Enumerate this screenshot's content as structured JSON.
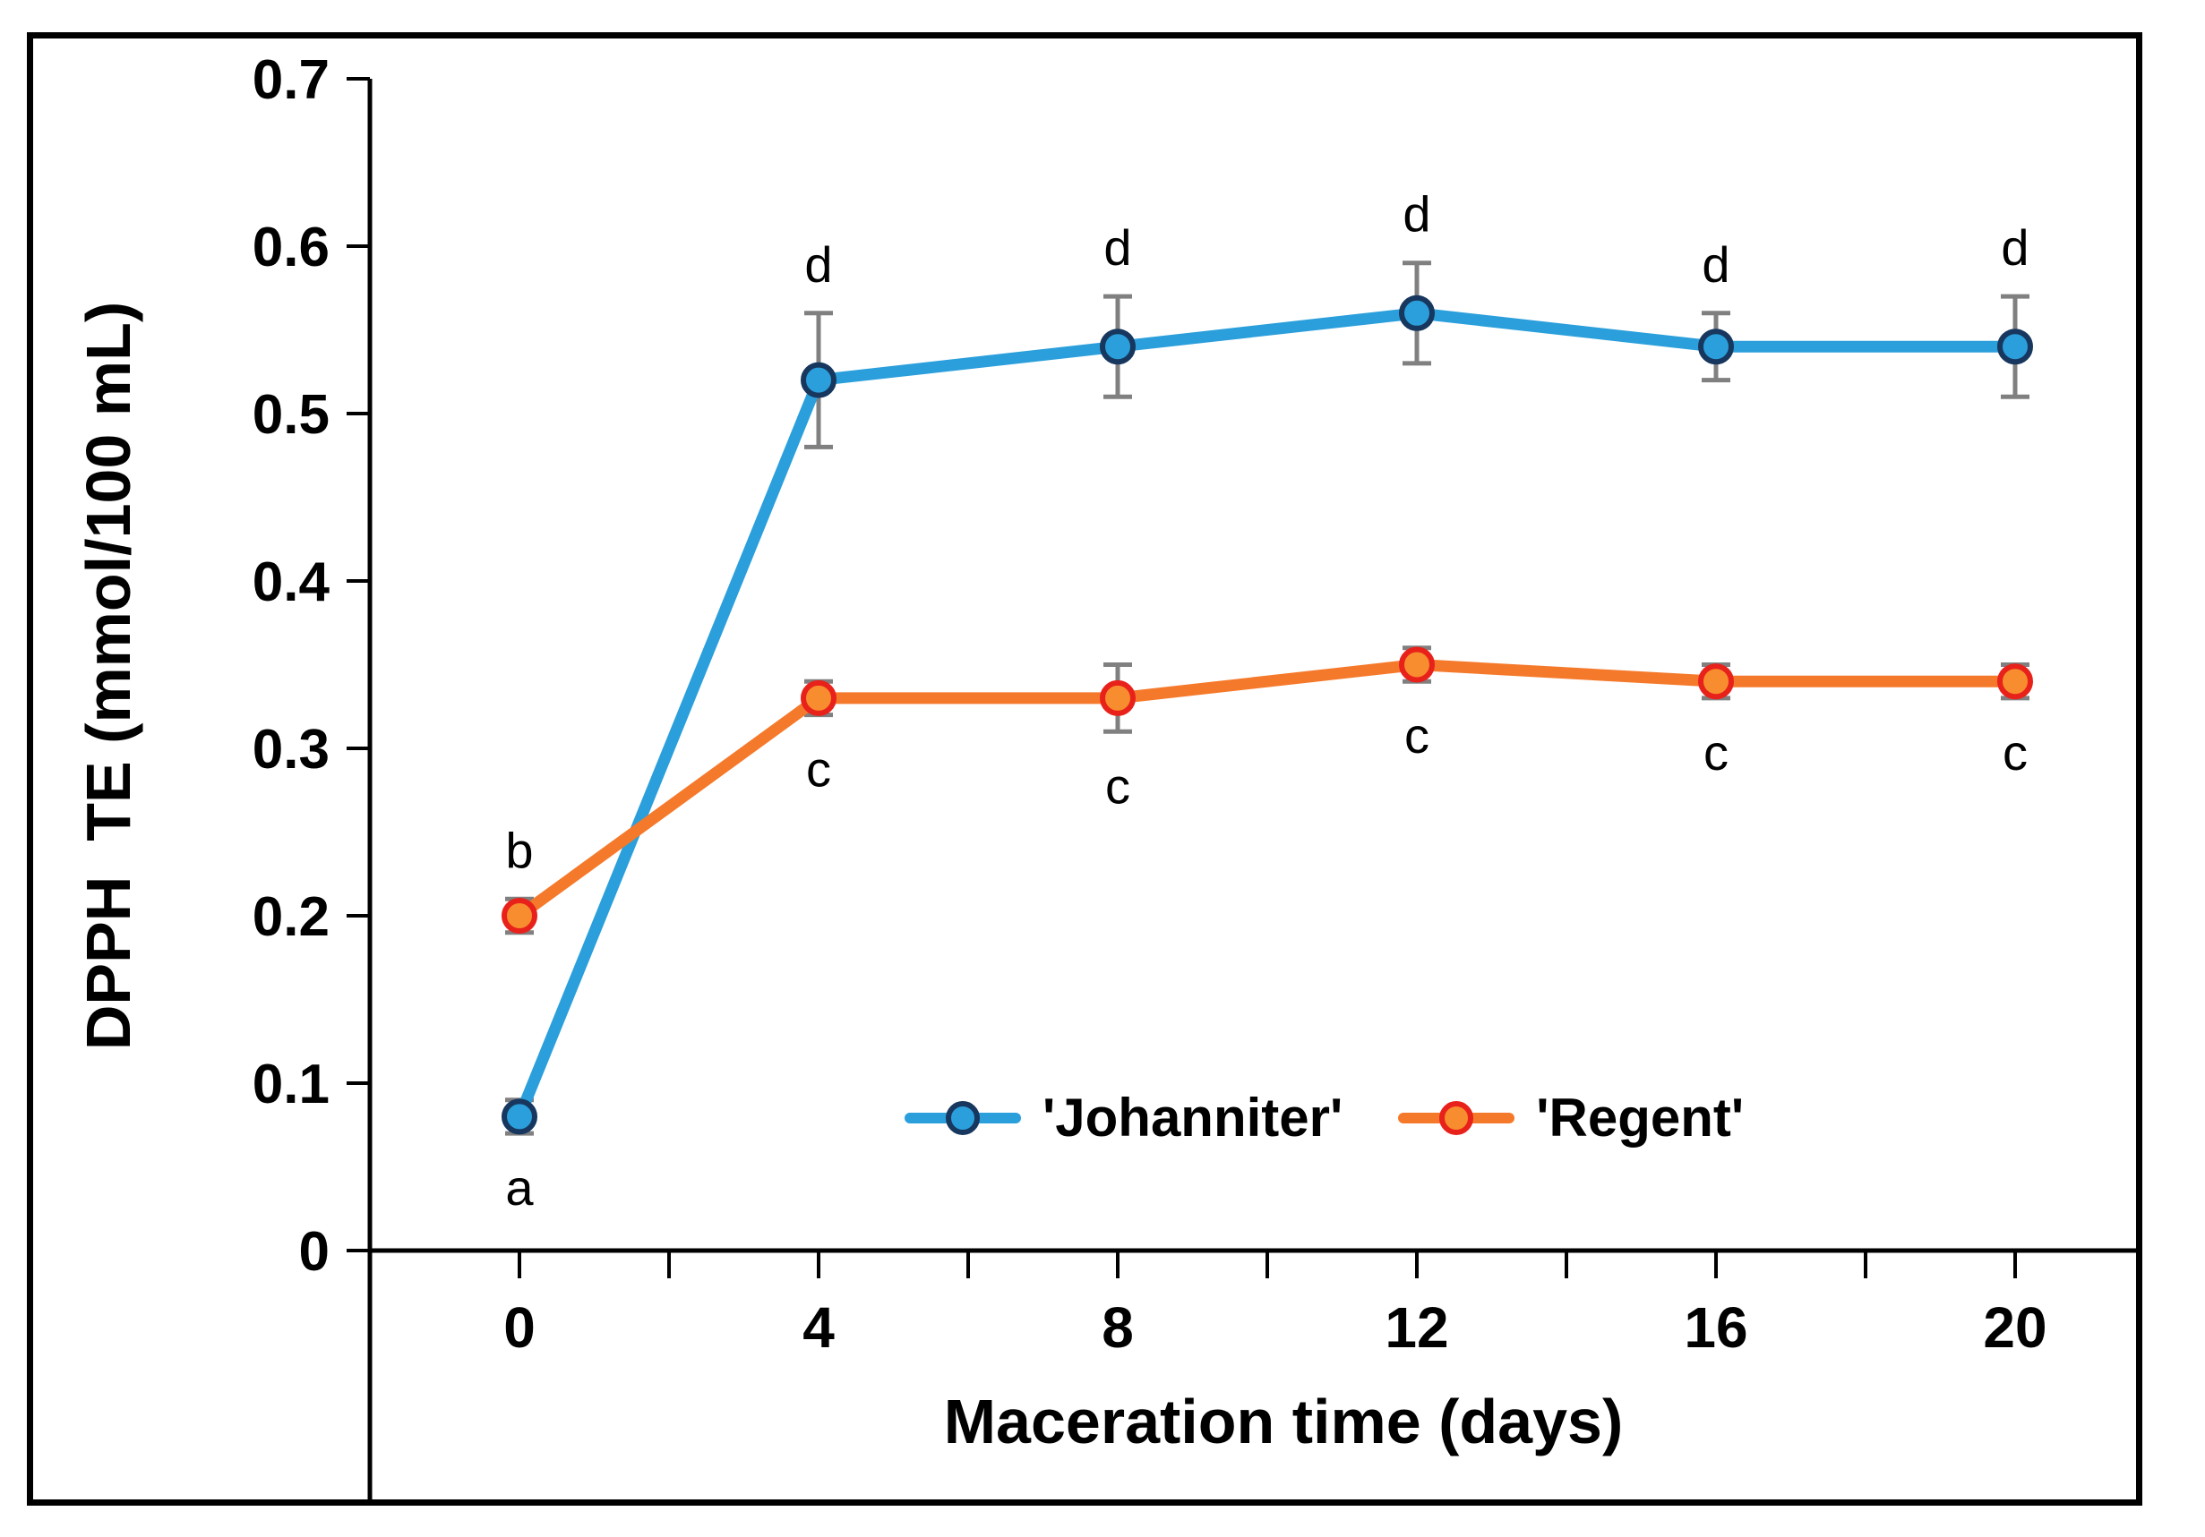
{
  "figure": {
    "background_color": "#ffffff",
    "border_color": "#000000",
    "axis_color": "#000000",
    "text_color": "#000000"
  },
  "y_axis": {
    "title": "DPPH  TE (mmol/100 mL)",
    "ticks": [
      "0.7",
      "0.6",
      "0.5",
      "0.4",
      "0.3",
      "0.2",
      "0.1",
      "0"
    ],
    "min": 0,
    "max": 0.7
  },
  "x_axis": {
    "title": "Maceration time (days)",
    "tick_labels": [
      "0",
      "4",
      "8",
      "12",
      "16",
      "20"
    ],
    "minor_tick_step_days": 2
  },
  "chart_data": {
    "type": "line",
    "title": "",
    "xlabel": "Maceration time (days)",
    "ylabel": "DPPH  TE (mmol/100 mL)",
    "x": [
      0,
      4,
      8,
      12,
      16,
      20
    ],
    "ylim": [
      0,
      0.7
    ],
    "grid": false,
    "legend_position": "inside-bottom-center",
    "error_bar_color": "#808080",
    "series": [
      {
        "name": "'Johanniter'",
        "values": [
          0.08,
          0.52,
          0.54,
          0.56,
          0.54,
          0.54
        ],
        "errors": [
          0.01,
          0.04,
          0.03,
          0.03,
          0.02,
          0.03
        ],
        "letters": [
          "a",
          "d",
          "d",
          "d",
          "d",
          "d"
        ],
        "letter_side": [
          "below",
          "above",
          "above",
          "above",
          "above",
          "above"
        ],
        "line_color": "#2B9FDB",
        "marker_fill": "#2B9FDB",
        "marker_edge": "#17375E"
      },
      {
        "name": "'Regent'",
        "values": [
          0.2,
          0.33,
          0.33,
          0.35,
          0.34,
          0.34
        ],
        "errors": [
          0.01,
          0.01,
          0.02,
          0.01,
          0.01,
          0.01
        ],
        "letters": [
          "b",
          "c",
          "c",
          "c",
          "c",
          "c"
        ],
        "letter_side": [
          "above",
          "below",
          "below",
          "below",
          "below",
          "below"
        ],
        "line_color": "#F5792B",
        "marker_fill": "#F78D2E",
        "marker_edge": "#E8211B"
      }
    ]
  }
}
